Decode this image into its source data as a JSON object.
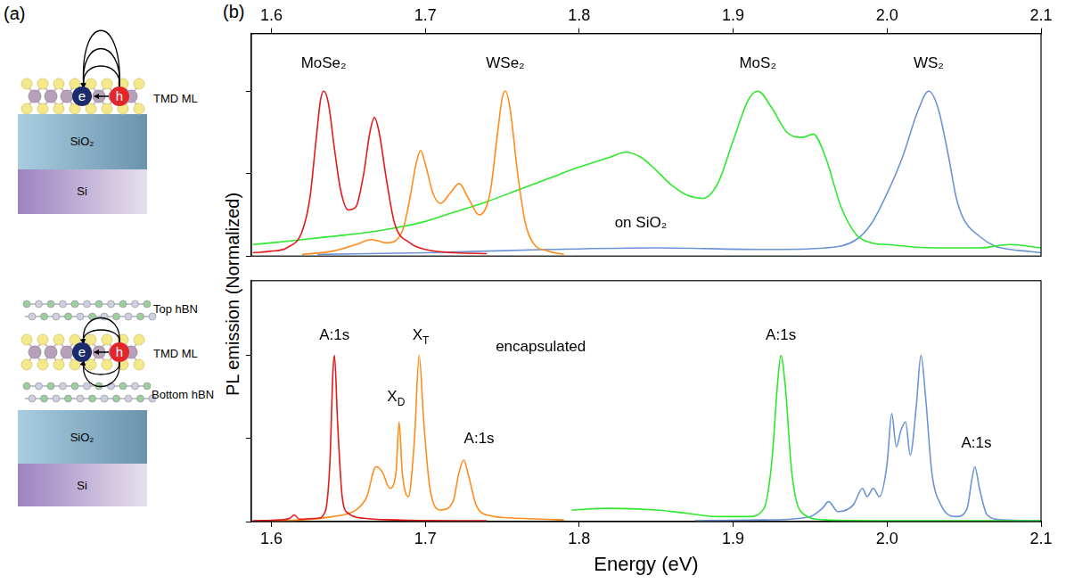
{
  "panel_labels": [
    "(a)",
    "(b)"
  ],
  "diagram": {
    "unencapsulated": {
      "layers": [
        "TMD ML",
        "SiO₂",
        "Si"
      ],
      "electron": "e",
      "hole": "h"
    },
    "encapsulated": {
      "layers": [
        "Top hBN",
        "TMD ML",
        "Bottom hBN",
        "SiO₂",
        "Si"
      ],
      "electron": "e",
      "hole": "h"
    }
  },
  "ylabel": "PL emission (Normalized)",
  "chart_data": [
    {
      "type": "line",
      "xlim": [
        1.587,
        2.1
      ],
      "xticks": [
        1.6,
        1.7,
        1.8,
        1.9,
        {
          "value": 2,
          "label": "2.0"
        },
        2.1
      ],
      "ylim": [
        0,
        1.35
      ],
      "yticks": [
        0,
        0.5,
        1
      ],
      "grid": false,
      "tick_labels": "x",
      "series": [
        {
          "color": "#e41a1c",
          "x": [
            1.588,
            1.6,
            1.61,
            1.62,
            1.625,
            1.629,
            1.632,
            1.634,
            1.637,
            1.641,
            1.645,
            1.65,
            1.655,
            1.66,
            1.664,
            1.667,
            1.67,
            1.675,
            1.68,
            1.69,
            1.7,
            1.72,
            1.74
          ],
          "values": [
            0.02,
            0.03,
            0.05,
            0.15,
            0.35,
            0.7,
            0.95,
            1.0,
            0.93,
            0.65,
            0.4,
            0.28,
            0.3,
            0.5,
            0.75,
            0.84,
            0.75,
            0.45,
            0.2,
            0.08,
            0.04,
            0.02,
            0.015
          ]
        },
        {
          "color": "#ff8c1a",
          "x": [
            1.62,
            1.64,
            1.655,
            1.665,
            1.675,
            1.685,
            1.69,
            1.694,
            1.697,
            1.7,
            1.705,
            1.71,
            1.716,
            1.722,
            1.728,
            1.735,
            1.742,
            1.747,
            1.75,
            1.752,
            1.755,
            1.76,
            1.765,
            1.77,
            1.78,
            1.79
          ],
          "values": [
            0.01,
            0.03,
            0.07,
            0.1,
            0.08,
            0.15,
            0.35,
            0.56,
            0.64,
            0.56,
            0.38,
            0.32,
            0.38,
            0.44,
            0.35,
            0.25,
            0.38,
            0.75,
            0.96,
            1.0,
            0.9,
            0.5,
            0.2,
            0.08,
            0.03,
            0.01
          ]
        },
        {
          "color": "#2ee82e",
          "x": [
            1.588,
            1.6,
            1.62,
            1.64,
            1.66,
            1.68,
            1.7,
            1.72,
            1.74,
            1.76,
            1.78,
            1.8,
            1.82,
            1.83,
            1.84,
            1.85,
            1.86,
            1.87,
            1.88,
            1.89,
            1.9,
            1.91,
            1.916,
            1.925,
            1.935,
            1.945,
            1.952,
            1.96,
            1.97,
            1.98,
            1.99,
            2.0,
            2.03,
            2.06,
            2.08,
            2.1
          ],
          "values": [
            0.07,
            0.08,
            0.1,
            0.12,
            0.14,
            0.17,
            0.21,
            0.27,
            0.33,
            0.4,
            0.47,
            0.54,
            0.6,
            0.63,
            0.6,
            0.52,
            0.43,
            0.37,
            0.35,
            0.44,
            0.7,
            0.95,
            1.0,
            0.9,
            0.75,
            0.72,
            0.74,
            0.6,
            0.3,
            0.13,
            0.08,
            0.07,
            0.05,
            0.05,
            0.07,
            0.05
          ]
        },
        {
          "color": "#6b93d6",
          "x": [
            1.63,
            1.7,
            1.78,
            1.85,
            1.92,
            1.96,
            1.98,
            1.99,
            2.0,
            2.01,
            2.02,
            2.027,
            2.033,
            2.04,
            2.045,
            2.05,
            2.06,
            2.07,
            2.08,
            2.09,
            2.1
          ],
          "values": [
            0.01,
            0.02,
            0.04,
            0.05,
            0.04,
            0.05,
            0.1,
            0.2,
            0.38,
            0.6,
            0.88,
            1.0,
            0.9,
            0.6,
            0.35,
            0.22,
            0.12,
            0.06,
            0.04,
            0.03,
            0.02
          ]
        }
      ],
      "annotations": [
        {
          "text": "MoSe₂",
          "x": 1.634,
          "y": 1.17
        },
        {
          "text": "WSe₂",
          "x": 1.752,
          "y": 1.17
        },
        {
          "text": "MoS₂",
          "x": 1.916,
          "y": 1.17
        },
        {
          "text": "WS₂",
          "x": 2.027,
          "y": 1.17
        },
        {
          "text": "on SiO₂",
          "x": 1.84,
          "y": 0.2
        }
      ]
    },
    {
      "type": "line",
      "xlabel": "Energy (eV)",
      "xlim": [
        1.587,
        2.1
      ],
      "xticks": [
        1.6,
        1.7,
        1.8,
        1.9,
        {
          "value": 2,
          "label": "2.0"
        },
        2.1
      ],
      "ylim": [
        0,
        1.45
      ],
      "yticks": [
        0,
        0.5,
        1
      ],
      "grid": false,
      "tick_labels": "x",
      "series": [
        {
          "color": "#e41a1c",
          "x": [
            1.588,
            1.605,
            1.612,
            1.615,
            1.618,
            1.63,
            1.635,
            1.638,
            1.64,
            1.641,
            1.643,
            1.646,
            1.65,
            1.66,
            1.68,
            1.72,
            1.74
          ],
          "values": [
            0.005,
            0.01,
            0.02,
            0.04,
            0.015,
            0.02,
            0.06,
            0.35,
            0.9,
            1.0,
            0.6,
            0.15,
            0.05,
            0.02,
            0.01,
            0.005,
            0.005
          ]
        },
        {
          "color": "#ff8c1a",
          "x": [
            1.6,
            1.62,
            1.64,
            1.655,
            1.662,
            1.668,
            1.672,
            1.677,
            1.681,
            1.683,
            1.685,
            1.689,
            1.693,
            1.696,
            1.699,
            1.703,
            1.71,
            1.718,
            1.722,
            1.725,
            1.728,
            1.733,
            1.74,
            1.76,
            1.79
          ],
          "values": [
            0.005,
            0.01,
            0.03,
            0.07,
            0.15,
            0.33,
            0.3,
            0.2,
            0.3,
            0.6,
            0.3,
            0.15,
            0.5,
            1.0,
            0.6,
            0.2,
            0.07,
            0.12,
            0.3,
            0.37,
            0.28,
            0.1,
            0.04,
            0.02,
            0.01
          ]
        },
        {
          "color": "#2ee82e",
          "x": [
            1.795,
            1.82,
            1.85,
            1.87,
            1.89,
            1.91,
            1.92,
            1.925,
            1.929,
            1.931,
            1.934,
            1.938,
            1.944,
            1.96,
            2.0,
            2.1
          ],
          "values": [
            0.07,
            0.08,
            0.07,
            0.05,
            0.03,
            0.03,
            0.08,
            0.35,
            0.85,
            1.0,
            0.8,
            0.3,
            0.06,
            0.01,
            0.005,
            0.005
          ]
        },
        {
          "color": "#6b93d6",
          "x": [
            1.875,
            1.92,
            1.95,
            1.958,
            1.962,
            1.968,
            1.978,
            1.984,
            1.987,
            1.991,
            1.995,
            2.0,
            2.003,
            2.006,
            2.009,
            2.012,
            2.015,
            2.019,
            2.022,
            2.025,
            2.029,
            2.035,
            2.045,
            2.052,
            2.055,
            2.057,
            2.06,
            2.065,
            2.075,
            2.1
          ],
          "values": [
            0.005,
            0.01,
            0.03,
            0.08,
            0.12,
            0.06,
            0.1,
            0.2,
            0.15,
            0.2,
            0.15,
            0.35,
            0.65,
            0.45,
            0.55,
            0.6,
            0.4,
            0.7,
            1.0,
            0.75,
            0.3,
            0.1,
            0.03,
            0.08,
            0.25,
            0.33,
            0.2,
            0.04,
            0.01,
            0.005
          ]
        }
      ],
      "annotations": [
        {
          "text": "A:1s",
          "x": 1.641,
          "y": 1.12
        },
        {
          "text": "X",
          "sub": "T",
          "x": 1.697,
          "y": 1.12
        },
        {
          "text": "X",
          "sub": "D",
          "x": 1.681,
          "y": 0.75
        },
        {
          "text": "A:1s",
          "x": 1.735,
          "y": 0.5
        },
        {
          "text": "encapsulated",
          "x": 1.775,
          "y": 1.05
        },
        {
          "text": "A:1s",
          "x": 1.931,
          "y": 1.12
        },
        {
          "text": "A:1s",
          "x": 2.058,
          "y": 0.47
        }
      ]
    }
  ]
}
